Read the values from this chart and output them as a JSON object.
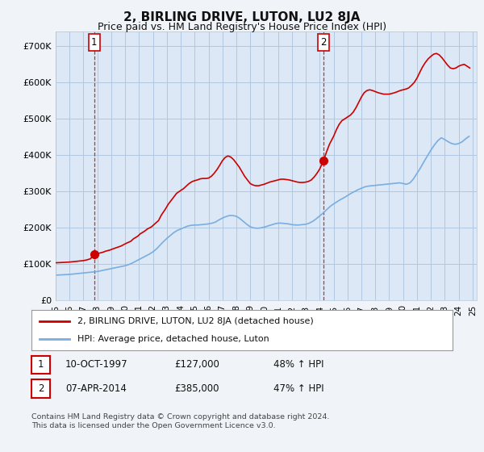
{
  "title": "2, BIRLING DRIVE, LUTON, LU2 8JA",
  "subtitle": "Price paid vs. HM Land Registry's House Price Index (HPI)",
  "title_fontsize": 11,
  "subtitle_fontsize": 9,
  "ylabel_ticks": [
    "£0",
    "£100K",
    "£200K",
    "£300K",
    "£400K",
    "£500K",
    "£600K",
    "£700K"
  ],
  "ylabel_values": [
    0,
    100000,
    200000,
    300000,
    400000,
    500000,
    600000,
    700000
  ],
  "ylim": [
    0,
    740000
  ],
  "xlim_start": 1995.0,
  "xlim_end": 2025.3,
  "background_color": "#f0f4f8",
  "plot_background": "#dce8f5",
  "grid_color": "#b0c8e0",
  "red_color": "#cc0000",
  "blue_color": "#7aade0",
  "transaction1_x": 1997.78,
  "transaction1_y": 127000,
  "transaction2_x": 2014.27,
  "transaction2_y": 385000,
  "annotation_label1": "1",
  "annotation_label2": "2",
  "legend_label_red": "2, BIRLING DRIVE, LUTON, LU2 8JA (detached house)",
  "legend_label_blue": "HPI: Average price, detached house, Luton",
  "table_row1": [
    "1",
    "10-OCT-1997",
    "£127,000",
    "48% ↑ HPI"
  ],
  "table_row2": [
    "2",
    "07-APR-2014",
    "£385,000",
    "47% ↑ HPI"
  ],
  "footer_text": "Contains HM Land Registry data © Crown copyright and database right 2024.\nThis data is licensed under the Open Government Licence v3.0.",
  "hpi_years": [
    1995.0,
    1995.25,
    1995.5,
    1995.75,
    1996.0,
    1996.25,
    1996.5,
    1996.75,
    1997.0,
    1997.25,
    1997.5,
    1997.75,
    1998.0,
    1998.25,
    1998.5,
    1998.75,
    1999.0,
    1999.25,
    1999.5,
    1999.75,
    2000.0,
    2000.25,
    2000.5,
    2000.75,
    2001.0,
    2001.25,
    2001.5,
    2001.75,
    2002.0,
    2002.25,
    2002.5,
    2002.75,
    2003.0,
    2003.25,
    2003.5,
    2003.75,
    2004.0,
    2004.25,
    2004.5,
    2004.75,
    2005.0,
    2005.25,
    2005.5,
    2005.75,
    2006.0,
    2006.25,
    2006.5,
    2006.75,
    2007.0,
    2007.25,
    2007.5,
    2007.75,
    2008.0,
    2008.25,
    2008.5,
    2008.75,
    2009.0,
    2009.25,
    2009.5,
    2009.75,
    2010.0,
    2010.25,
    2010.5,
    2010.75,
    2011.0,
    2011.25,
    2011.5,
    2011.75,
    2012.0,
    2012.25,
    2012.5,
    2012.75,
    2013.0,
    2013.25,
    2013.5,
    2013.75,
    2014.0,
    2014.25,
    2014.5,
    2014.75,
    2015.0,
    2015.25,
    2015.5,
    2015.75,
    2016.0,
    2016.25,
    2016.5,
    2016.75,
    2017.0,
    2017.25,
    2017.5,
    2017.75,
    2018.0,
    2018.25,
    2018.5,
    2018.75,
    2019.0,
    2019.25,
    2019.5,
    2019.75,
    2020.0,
    2020.25,
    2020.5,
    2020.75,
    2021.0,
    2021.25,
    2021.5,
    2021.75,
    2022.0,
    2022.25,
    2022.5,
    2022.75,
    2023.0,
    2023.25,
    2023.5,
    2023.75,
    2024.0,
    2024.25,
    2024.5,
    2024.75
  ],
  "hpi_values": [
    70000,
    70500,
    71000,
    71500,
    72000,
    73000,
    74000,
    75000,
    76000,
    77000,
    78000,
    79000,
    80000,
    82000,
    84000,
    86000,
    88000,
    90000,
    92000,
    94000,
    96000,
    99000,
    103000,
    108000,
    113000,
    118000,
    123000,
    128000,
    134000,
    142000,
    152000,
    162000,
    171000,
    179000,
    187000,
    193000,
    197000,
    201000,
    205000,
    207000,
    208000,
    208000,
    209000,
    210000,
    211000,
    213000,
    216000,
    222000,
    227000,
    231000,
    234000,
    234000,
    232000,
    226000,
    218000,
    210000,
    203000,
    200000,
    199000,
    200000,
    202000,
    205000,
    208000,
    211000,
    213000,
    213000,
    212000,
    211000,
    209000,
    208000,
    208000,
    209000,
    210000,
    213000,
    218000,
    225000,
    233000,
    241000,
    250000,
    259000,
    266000,
    272000,
    278000,
    283000,
    289000,
    295000,
    300000,
    305000,
    309000,
    313000,
    315000,
    316000,
    317000,
    318000,
    319000,
    320000,
    321000,
    322000,
    323000,
    324000,
    322000,
    320000,
    324000,
    335000,
    350000,
    365000,
    382000,
    398000,
    414000,
    428000,
    440000,
    448000,
    443000,
    437000,
    432000,
    430000,
    432000,
    437000,
    445000,
    452000
  ],
  "house_years": [
    1995.0,
    1995.25,
    1995.5,
    1995.75,
    1996.0,
    1996.25,
    1996.5,
    1996.75,
    1997.0,
    1997.25,
    1997.5,
    1997.78,
    1998.1,
    1998.4,
    1998.6,
    1998.9,
    1999.1,
    1999.4,
    1999.7,
    1999.9,
    2000.1,
    2000.4,
    2000.6,
    2000.9,
    2001.1,
    2001.4,
    2001.6,
    2001.9,
    2002.1,
    2002.4,
    2002.6,
    2002.9,
    2003.1,
    2003.3,
    2003.5,
    2003.7,
    2004.0,
    2004.2,
    2004.4,
    2004.6,
    2004.8,
    2005.0,
    2005.2,
    2005.4,
    2005.6,
    2005.8,
    2006.0,
    2006.2,
    2006.4,
    2006.6,
    2006.8,
    2007.0,
    2007.2,
    2007.4,
    2007.6,
    2007.8,
    2008.0,
    2008.2,
    2008.4,
    2008.6,
    2008.8,
    2009.0,
    2009.2,
    2009.4,
    2009.6,
    2009.8,
    2010.0,
    2010.2,
    2010.4,
    2010.6,
    2010.8,
    2011.0,
    2011.2,
    2011.4,
    2011.6,
    2011.8,
    2012.0,
    2012.2,
    2012.4,
    2012.6,
    2012.8,
    2013.0,
    2013.2,
    2013.4,
    2013.6,
    2013.8,
    2014.0,
    2014.27,
    2014.5,
    2014.7,
    2015.0,
    2015.2,
    2015.4,
    2015.6,
    2015.8,
    2016.0,
    2016.2,
    2016.4,
    2016.6,
    2016.8,
    2017.0,
    2017.2,
    2017.4,
    2017.6,
    2017.8,
    2018.0,
    2018.2,
    2018.4,
    2018.6,
    2018.8,
    2019.0,
    2019.2,
    2019.4,
    2019.6,
    2019.8,
    2020.0,
    2020.2,
    2020.4,
    2020.6,
    2020.8,
    2021.0,
    2021.2,
    2021.4,
    2021.6,
    2021.8,
    2022.0,
    2022.2,
    2022.4,
    2022.6,
    2022.8,
    2023.0,
    2023.2,
    2023.4,
    2023.6,
    2023.8,
    2024.0,
    2024.2,
    2024.4,
    2024.6,
    2024.8
  ],
  "house_values": [
    104000,
    104500,
    105000,
    105500,
    106000,
    107000,
    108000,
    109000,
    110000,
    112000,
    115000,
    127000,
    130000,
    133000,
    136000,
    139000,
    142000,
    146000,
    150000,
    154000,
    158000,
    163000,
    170000,
    177000,
    184000,
    191000,
    197000,
    203000,
    210000,
    220000,
    235000,
    252000,
    265000,
    275000,
    285000,
    295000,
    303000,
    308000,
    315000,
    322000,
    327000,
    330000,
    332000,
    335000,
    336000,
    336000,
    337000,
    342000,
    350000,
    360000,
    372000,
    385000,
    394000,
    398000,
    395000,
    388000,
    378000,
    368000,
    355000,
    342000,
    332000,
    322000,
    318000,
    316000,
    316000,
    318000,
    320000,
    323000,
    326000,
    328000,
    330000,
    332000,
    334000,
    334000,
    333000,
    332000,
    330000,
    328000,
    326000,
    325000,
    325000,
    326000,
    328000,
    332000,
    340000,
    350000,
    362000,
    385000,
    410000,
    430000,
    452000,
    470000,
    485000,
    495000,
    500000,
    505000,
    510000,
    518000,
    530000,
    545000,
    560000,
    572000,
    578000,
    580000,
    578000,
    575000,
    572000,
    570000,
    568000,
    568000,
    568000,
    570000,
    572000,
    575000,
    578000,
    580000,
    582000,
    585000,
    592000,
    600000,
    612000,
    628000,
    643000,
    655000,
    665000,
    672000,
    678000,
    680000,
    676000,
    668000,
    658000,
    648000,
    640000,
    638000,
    640000,
    645000,
    648000,
    650000,
    645000,
    640000
  ]
}
